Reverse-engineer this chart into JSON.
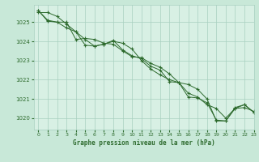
{
  "title": "Graphe pression niveau de la mer (hPa)",
  "background_color": "#c8e8d8",
  "plot_bg_color": "#d8f0e4",
  "line_color": "#2d6a2d",
  "grid_color": "#a8cfc0",
  "xlim": [
    -0.5,
    23
  ],
  "ylim": [
    1019.4,
    1025.9
  ],
  "yticks": [
    1020,
    1021,
    1022,
    1023,
    1024,
    1025
  ],
  "xticks": [
    0,
    1,
    2,
    3,
    4,
    5,
    6,
    7,
    8,
    9,
    10,
    11,
    12,
    13,
    14,
    15,
    16,
    17,
    18,
    19,
    20,
    21,
    22,
    23
  ],
  "series": [
    [
      1025.6,
      1025.1,
      1025.0,
      1025.0,
      1024.1,
      1024.15,
      1024.1,
      1023.9,
      1023.85,
      1023.5,
      1023.2,
      1023.15,
      1022.85,
      1022.65,
      1022.3,
      1021.85,
      1021.3,
      1021.1,
      1020.7,
      1020.5,
      1020.0,
      1020.5,
      1020.55,
      1020.35
    ],
    [
      1025.5,
      1025.5,
      1025.3,
      1024.9,
      1024.5,
      1023.8,
      1023.75,
      1023.85,
      1024.0,
      1023.9,
      1023.6,
      1023.0,
      1022.55,
      1022.25,
      1022.0,
      1021.85,
      1021.75,
      1021.5,
      1021.0,
      1019.85,
      1019.85,
      1020.55,
      1020.7,
      1020.3
    ],
    [
      1025.6,
      1025.05,
      1025.0,
      1024.7,
      1024.5,
      1024.1,
      1023.75,
      1023.85,
      1024.05,
      1023.55,
      1023.25,
      1023.1,
      1022.7,
      1022.5,
      1021.9,
      1021.85,
      1021.1,
      1021.05,
      1020.8,
      1019.9,
      1019.85,
      1020.5,
      1020.7,
      1020.3
    ]
  ]
}
